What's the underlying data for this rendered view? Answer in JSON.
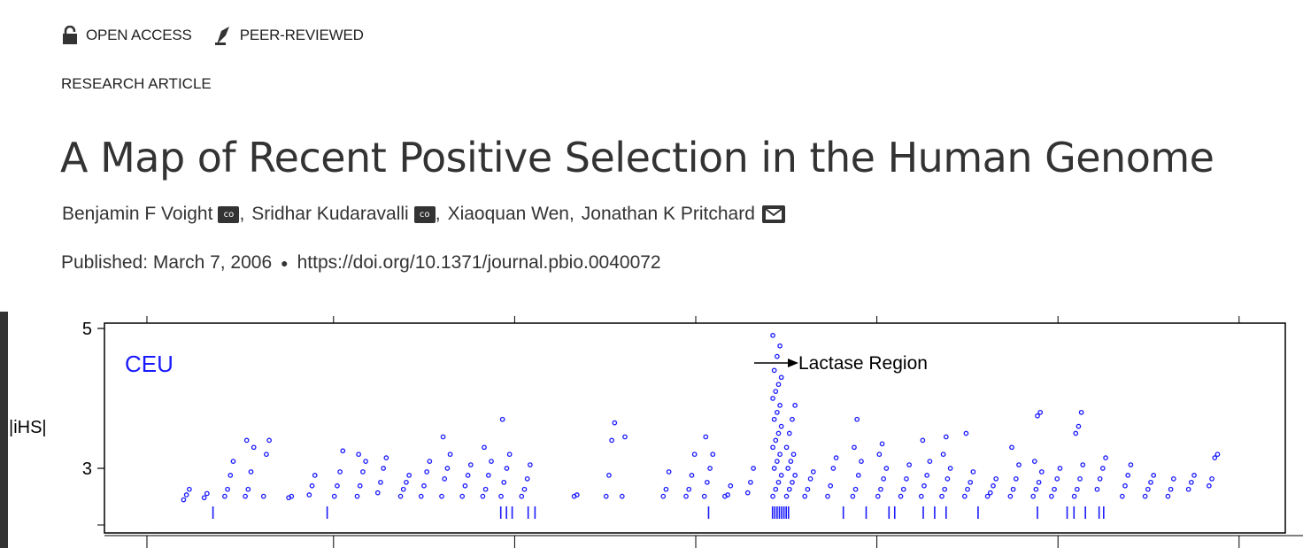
{
  "badges": {
    "open_access": "OPEN ACCESS",
    "peer_reviewed": "PEER-REVIEWED",
    "open_access_icon": "unlock-icon",
    "peer_reviewed_icon": "pen-nib-icon"
  },
  "article_type": "RESEARCH ARTICLE",
  "title": "A Map of Recent Positive Selection in the Human Genome",
  "authors": [
    {
      "name": "Benjamin F Voight",
      "badge": "co"
    },
    {
      "name": "Sridhar Kudaravalli",
      "badge": "co"
    },
    {
      "name": "Xiaoquan Wen",
      "badge": ""
    },
    {
      "name": "Jonathan K Pritchard",
      "badge": "mail"
    }
  ],
  "published": "Published: March 7, 2006",
  "doi": "https://doi.org/10.1371/journal.pbio.0040072",
  "colors": {
    "points": "#1a1aff",
    "text": "#333333",
    "frame": "#000000"
  },
  "chart_data": {
    "type": "scatter",
    "title": "",
    "panel_label": "CEU",
    "ylabel": "|iHS|",
    "xlabel": "",
    "ylim": [
      2.0,
      5.0
    ],
    "y_ticks": [
      3,
      5
    ],
    "annotation": "Lactase Region",
    "x_units": "genome position (relative, 0-100)",
    "xlim": [
      0,
      100
    ],
    "clusters": [
      {
        "x": 5.6,
        "values": [
          2.55,
          2.62,
          2.7
        ]
      },
      {
        "x": 7.4,
        "values": [
          2.58,
          2.64
        ]
      },
      {
        "x": 9.2,
        "values": [
          2.6,
          2.7,
          2.9,
          3.1
        ]
      },
      {
        "x": 11.0,
        "values": [
          2.6,
          2.7,
          2.95,
          3.3,
          3.4
        ]
      },
      {
        "x": 12.6,
        "values": [
          2.6,
          3.2,
          3.4
        ]
      },
      {
        "x": 14.8,
        "values": [
          2.58,
          2.6
        ]
      },
      {
        "x": 16.6,
        "values": [
          2.62,
          2.75,
          2.9
        ]
      },
      {
        "x": 18.8,
        "values": [
          2.6,
          2.75,
          2.95,
          3.25
        ]
      },
      {
        "x": 20.8,
        "values": [
          2.6,
          2.75,
          2.95,
          3.1,
          3.2
        ]
      },
      {
        "x": 22.6,
        "values": [
          2.65,
          2.8,
          3.0,
          3.15
        ]
      },
      {
        "x": 24.6,
        "values": [
          2.6,
          2.7,
          2.8,
          2.9
        ]
      },
      {
        "x": 26.4,
        "values": [
          2.6,
          2.75,
          2.95,
          3.1
        ]
      },
      {
        "x": 28.2,
        "values": [
          2.6,
          2.85,
          3.0,
          3.2,
          3.45
        ]
      },
      {
        "x": 30.0,
        "values": [
          2.6,
          2.75,
          2.9,
          3.05
        ]
      },
      {
        "x": 31.8,
        "values": [
          2.6,
          2.7,
          2.9,
          3.1,
          3.3
        ]
      },
      {
        "x": 33.4,
        "values": [
          2.6,
          2.8,
          3.0,
          3.2,
          3.7
        ]
      },
      {
        "x": 35.2,
        "values": [
          2.6,
          2.7,
          2.85,
          3.05
        ]
      },
      {
        "x": 39.8,
        "values": [
          2.6,
          2.62
        ]
      },
      {
        "x": 42.6,
        "values": [
          2.6,
          2.9,
          3.4,
          3.65
        ]
      },
      {
        "x": 44.0,
        "values": [
          2.6,
          3.45
        ]
      },
      {
        "x": 47.6,
        "values": [
          2.6,
          2.7,
          2.95
        ]
      },
      {
        "x": 49.6,
        "values": [
          2.6,
          2.7,
          2.9,
          3.2
        ]
      },
      {
        "x": 51.2,
        "values": [
          2.6,
          2.8,
          3.0,
          3.2,
          3.45
        ]
      },
      {
        "x": 53.0,
        "values": [
          2.6,
          2.62,
          2.75
        ]
      },
      {
        "x": 55.0,
        "values": [
          2.65,
          2.8,
          3.0
        ]
      },
      {
        "x": 57.2,
        "values": [
          2.6,
          2.7,
          2.8,
          2.9,
          3.0,
          3.1,
          3.2,
          3.3,
          3.4,
          3.5,
          3.6,
          3.7,
          3.8,
          3.9,
          4.0,
          4.1,
          4.2,
          4.3,
          4.4,
          4.6,
          4.75,
          4.9
        ]
      },
      {
        "x": 58.4,
        "values": [
          2.6,
          2.7,
          2.8,
          2.9,
          3.0,
          3.1,
          3.2,
          3.3,
          3.5,
          3.7,
          3.9
        ]
      },
      {
        "x": 60.0,
        "values": [
          2.6,
          2.7,
          2.85,
          2.95
        ]
      },
      {
        "x": 62.0,
        "values": [
          2.6,
          2.75,
          3.0,
          3.15
        ]
      },
      {
        "x": 64.2,
        "values": [
          2.6,
          2.7,
          2.9,
          3.1,
          3.3,
          3.7
        ]
      },
      {
        "x": 66.4,
        "values": [
          2.6,
          2.7,
          2.85,
          3.0,
          3.2,
          3.35
        ]
      },
      {
        "x": 68.4,
        "values": [
          2.6,
          2.7,
          2.85,
          3.05
        ]
      },
      {
        "x": 70.2,
        "values": [
          2.6,
          2.75,
          2.9,
          3.1,
          3.4
        ]
      },
      {
        "x": 72.0,
        "values": [
          2.6,
          2.7,
          2.85,
          3.0,
          3.2,
          3.45
        ]
      },
      {
        "x": 74.0,
        "values": [
          2.6,
          2.7,
          2.8,
          2.95,
          3.5
        ]
      },
      {
        "x": 76.0,
        "values": [
          2.6,
          2.65,
          2.75,
          2.85
        ]
      },
      {
        "x": 78.0,
        "values": [
          2.6,
          2.7,
          2.85,
          3.05,
          3.3
        ]
      },
      {
        "x": 80.0,
        "values": [
          2.6,
          2.7,
          2.8,
          2.95,
          3.1,
          3.75,
          3.8
        ]
      },
      {
        "x": 81.6,
        "values": [
          2.6,
          2.7,
          2.85,
          3.0
        ]
      },
      {
        "x": 83.6,
        "values": [
          2.6,
          2.7,
          2.85,
          3.05,
          3.5,
          3.6,
          3.8
        ]
      },
      {
        "x": 85.6,
        "values": [
          2.7,
          2.85,
          3.0,
          3.15
        ]
      },
      {
        "x": 87.8,
        "values": [
          2.6,
          2.75,
          2.9,
          3.05
        ]
      },
      {
        "x": 89.8,
        "values": [
          2.6,
          2.7,
          2.8,
          2.9
        ]
      },
      {
        "x": 91.8,
        "values": [
          2.6,
          2.7,
          2.85
        ]
      },
      {
        "x": 93.6,
        "values": [
          2.7,
          2.8,
          2.9
        ]
      },
      {
        "x": 95.4,
        "values": [
          2.75,
          2.85,
          3.15,
          3.2
        ]
      }
    ],
    "hit_markers_x": [
      7.8,
      17.8,
      33.0,
      33.5,
      34.0,
      35.4,
      36.0,
      51.2,
      56.8,
      57.0,
      57.2,
      57.4,
      57.6,
      57.8,
      58.0,
      58.2,
      63.0,
      65.0,
      67.0,
      67.5,
      70.0,
      71.0,
      72.0,
      74.8,
      80.0,
      82.6,
      83.2,
      84.2,
      85.4,
      85.8
    ],
    "top_ticks_x": [
      0,
      17,
      33.5,
      50,
      66.5,
      83,
      99.5
    ],
    "bottom_ticks_x": [
      0,
      17,
      33.5,
      50,
      66.5,
      83,
      99.5
    ]
  }
}
